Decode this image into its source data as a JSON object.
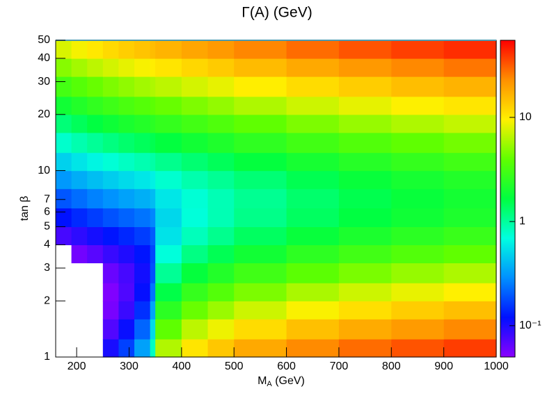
{
  "chart_data": {
    "type": "heatmap",
    "title": "Γ(A) (GeV)",
    "xlabel": [
      "M",
      "A",
      " (GeV)"
    ],
    "ylabel": "tan β",
    "xbins": [
      160,
      190,
      220,
      250,
      280,
      310,
      340,
      350,
      400,
      450,
      500,
      600,
      700,
      800,
      900,
      1000
    ],
    "ybins": [
      1,
      1.25,
      1.6,
      2,
      2.5,
      3.2,
      4,
      5,
      6.3,
      8,
      10,
      12.5,
      16,
      20,
      25,
      32,
      40,
      50
    ],
    "z": [
      [
        0.0072,
        0.0104,
        0.0305,
        0.103,
        0.168,
        0.329,
        0.81,
        6.22,
        10.6,
        13.9,
        18.3,
        23.6,
        28.6,
        33.3,
        37.9
      ],
      [
        0.0092,
        0.012,
        0.0253,
        0.0717,
        0.113,
        0.214,
        0.515,
        3.9,
        6.62,
        8.72,
        11.5,
        14.8,
        17.9,
        20.8,
        23.7
      ],
      [
        0.0132,
        0.0163,
        0.0259,
        0.0562,
        0.0833,
        0.148,
        0.337,
        2.45,
        4.15,
        5.47,
        7.2,
        9.27,
        11.2,
        13.1,
        14.9
      ],
      [
        0.0199,
        0.0238,
        0.0319,
        0.0532,
        0.0725,
        0.116,
        0.238,
        1.59,
        2.69,
        3.53,
        4.64,
        5.97,
        7.22,
        8.41,
        9.58
      ],
      [
        0.0312,
        0.0368,
        0.0452,
        0.0616,
        0.0769,
        0.107,
        0.186,
        1.04,
        1.72,
        2.26,
        2.96,
        3.8,
        4.59,
        5.35,
        6.09
      ],
      [
        0.0495,
        0.0582,
        0.0685,
        0.084,
        0.0987,
        0.123,
        0.175,
        0.712,
        1.15,
        1.49,
        1.94,
        2.49,
        3.0,
        3.49,
        3.97
      ],
      [
        0.077,
        0.0902,
        0.105,
        0.123,
        0.14,
        0.163,
        0.202,
        0.553,
        0.847,
        1.08,
        1.39,
        1.76,
        2.12,
        2.45,
        2.79
      ],
      [
        0.121,
        0.142,
        0.163,
        0.188,
        0.211,
        0.238,
        0.271,
        0.506,
        0.714,
        0.881,
        1.11,
        1.39,
        1.65,
        1.91,
        2.16
      ],
      [
        0.194,
        0.227,
        0.261,
        0.296,
        0.331,
        0.368,
        0.403,
        0.57,
        0.733,
        0.872,
        1.06,
        1.31,
        1.54,
        1.77,
        1.99
      ],
      [
        0.308,
        0.361,
        0.414,
        0.466,
        0.519,
        0.572,
        0.62,
        0.757,
        0.913,
        1.05,
        1.25,
        1.51,
        1.77,
        2.02,
        2.26
      ],
      [
        0.481,
        0.564,
        0.646,
        0.729,
        0.811,
        0.894,
        0.949,
        1.09,
        1.27,
        1.45,
        1.7,
        2.02,
        2.35,
        2.67,
        2.99
      ],
      [
        0.77,
        0.902,
        1.03,
        1.17,
        1.3,
        1.43,
        1.52,
        1.69,
        1.94,
        2.18,
        2.54,
        3.01,
        3.48,
        3.95,
        4.42
      ],
      [
        1.23,
        1.44,
        1.65,
        1.87,
        2.08,
        2.29,
        2.43,
        2.66,
        3.03,
        3.4,
        3.94,
        4.67,
        5.39,
        6.11,
        6.84
      ],
      [
        1.93,
        2.26,
        2.59,
        2.92,
        3.25,
        3.58,
        3.8,
        4.14,
        4.7,
        5.26,
        6.1,
        7.21,
        8.32,
        9.43,
        10.5
      ],
      [
        3.08,
        3.61,
        4.14,
        4.66,
        5.19,
        5.72,
        6.07,
        6.6,
        7.5,
        8.38,
        9.71,
        11.5,
        13.2,
        15.0,
        16.7
      ],
      [
        4.93,
        5.77,
        6.62,
        7.46,
        8.31,
        9.15,
        9.72,
        10.6,
        12.0,
        13.4,
        15.5,
        18.3,
        21.1,
        23.9,
        26.8
      ],
      [
        7.7,
        9.02,
        10.3,
        11.7,
        13.0,
        14.3,
        15.2,
        16.5,
        18.7,
        20.9,
        24.2,
        28.6,
        33.0,
        37.4,
        41.8
      ]
    ],
    "xlim": [
      160,
      1000
    ],
    "xticks": [
      200,
      300,
      400,
      500,
      600,
      700,
      800,
      900,
      1000
    ],
    "ylim": [
      1,
      50
    ],
    "ylog": true,
    "yticks": [
      1,
      2,
      3,
      4,
      5,
      6,
      7,
      10,
      20,
      30,
      40,
      50
    ],
    "zlim": [
      0.05,
      55
    ],
    "zlog": true,
    "zticks": [
      {
        "value": 0.1,
        "label": "10⁻¹"
      },
      1,
      10
    ],
    "palette": [
      "#8a00ff",
      "#0010ff",
      "#0090ff",
      "#00ffe0",
      "#00ff40",
      "#60ff00",
      "#fff000",
      "#ff9000",
      "#ff0000"
    ]
  }
}
